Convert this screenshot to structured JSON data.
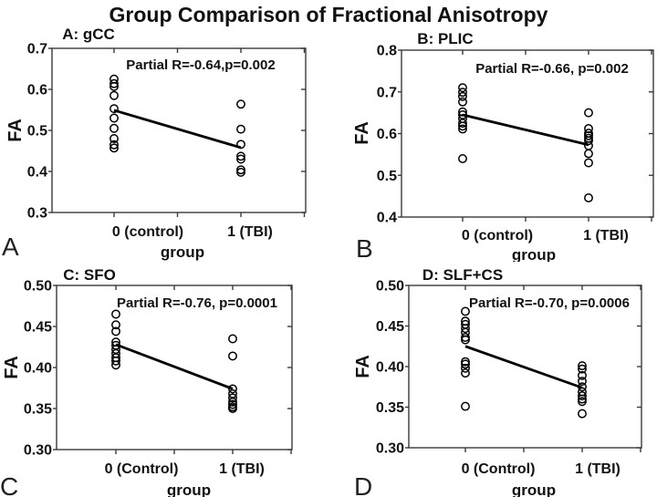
{
  "figure": {
    "title": "Group Comparison of Fractional Anisotropy"
  },
  "chart_data": [
    {
      "type": "scatter",
      "panel_letter": "A",
      "title": "A: gCC",
      "annotation": "Partial R=-0.64,p=0.002",
      "xlabel": "group",
      "ylabel": "FA",
      "categories": [
        "0 (control)",
        "1 (TBI)"
      ],
      "ylim": [
        0.3,
        0.7
      ],
      "ytick_labels": [
        "0.7",
        "0.6",
        "0.5",
        "0.4",
        "0.3"
      ],
      "series": [
        {
          "name": "0 (control)",
          "x": 0,
          "values": [
            0.625,
            0.614,
            0.607,
            0.585,
            0.553,
            0.53,
            0.505,
            0.48,
            0.465,
            0.457
          ]
        },
        {
          "name": "1 (TBI)",
          "x": 1,
          "values": [
            0.564,
            0.503,
            0.466,
            0.437,
            0.43,
            0.404,
            0.398
          ]
        }
      ],
      "fit_line": {
        "y_at_x0": 0.549,
        "y_at_x1": 0.458
      }
    },
    {
      "type": "scatter",
      "panel_letter": "B",
      "title": "B: PLIC",
      "annotation": "Partial R=-0.66, p=0.002",
      "xlabel": "group",
      "ylabel": "FA",
      "categories": [
        "0 (control)",
        "1 (TBI)"
      ],
      "ylim": [
        0.4,
        0.8
      ],
      "ytick_labels": [
        "0.8",
        "0.7",
        "0.6",
        "0.5",
        "0.4"
      ],
      "series": [
        {
          "name": "0 (control)",
          "x": 0,
          "values": [
            0.71,
            0.699,
            0.689,
            0.676,
            0.652,
            0.645,
            0.636,
            0.625,
            0.618,
            0.611,
            0.54
          ]
        },
        {
          "name": "1 (TBI)",
          "x": 1,
          "values": [
            0.65,
            0.612,
            0.601,
            0.595,
            0.589,
            0.583,
            0.571,
            0.552,
            0.53,
            0.446
          ]
        }
      ],
      "fit_line": {
        "y_at_x0": 0.645,
        "y_at_x1": 0.573
      }
    },
    {
      "type": "scatter",
      "panel_letter": "C",
      "title": "C: SFO",
      "annotation": "Partial R=-0.76, p=0.0001",
      "xlabel": "group",
      "ylabel": "FA",
      "categories": [
        "0 (Control)",
        "1 (TBI)"
      ],
      "ylim": [
        0.3,
        0.5
      ],
      "ytick_labels": [
        "0.50",
        "0.45",
        "0.40",
        "0.35",
        "0.30"
      ],
      "series": [
        {
          "name": "0 (Control)",
          "x": 0,
          "values": [
            0.465,
            0.452,
            0.444,
            0.431,
            0.427,
            0.422,
            0.417,
            0.412,
            0.408,
            0.403
          ]
        },
        {
          "name": "1 (TBI)",
          "x": 1,
          "values": [
            0.435,
            0.414,
            0.374,
            0.368,
            0.363,
            0.358,
            0.355,
            0.352,
            0.35
          ]
        }
      ],
      "fit_line": {
        "y_at_x0": 0.428,
        "y_at_x1": 0.374
      }
    },
    {
      "type": "scatter",
      "panel_letter": "D",
      "title": "D: SLF+CS",
      "annotation": "Partial R=-0.70, p=0.0006",
      "xlabel": "group",
      "ylabel": "FA",
      "categories": [
        "0 (Control)",
        "1 (TBI)"
      ],
      "ylim": [
        0.3,
        0.5
      ],
      "ytick_labels": [
        "0.50",
        "0.45",
        "0.40",
        "0.35",
        "0.30"
      ],
      "series": [
        {
          "name": "0 (Control)",
          "x": 0,
          "values": [
            0.468,
            0.456,
            0.452,
            0.447,
            0.442,
            0.436,
            0.433,
            0.406,
            0.403,
            0.398,
            0.392,
            0.351
          ]
        },
        {
          "name": "1 (TBI)",
          "x": 1,
          "values": [
            0.401,
            0.397,
            0.389,
            0.382,
            0.375,
            0.369,
            0.364,
            0.36,
            0.357,
            0.342
          ]
        }
      ],
      "fit_line": {
        "y_at_x0": 0.425,
        "y_at_x1": 0.374
      }
    }
  ],
  "style": {
    "point_color": "#000000",
    "line_color": "#000000",
    "axis_color": "#3a3a3a",
    "background": "#ffffff"
  }
}
